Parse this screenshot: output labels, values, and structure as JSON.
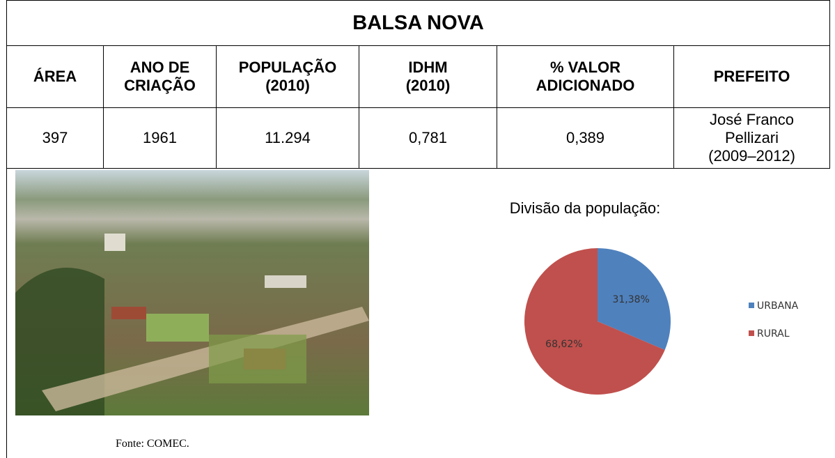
{
  "table": {
    "title": "BALSA NOVA",
    "headers": [
      [
        "ÁREA"
      ],
      [
        "ANO DE",
        "CRIAÇÃO"
      ],
      [
        "POPULAÇÃO",
        "(2010)"
      ],
      [
        "IDHM",
        "(2010)"
      ],
      [
        "% VALOR",
        "ADICIONADO"
      ],
      [
        "PREFEITO"
      ]
    ],
    "row": [
      [
        "397"
      ],
      [
        "1961"
      ],
      [
        "11.294"
      ],
      [
        "0,781"
      ],
      [
        "0,389"
      ],
      [
        "José Franco",
        "Pellizari",
        "(2009–2012)"
      ]
    ]
  },
  "caption": "Fonte: COMEC.",
  "chart_data": {
    "type": "pie",
    "title": "Divisão da população:",
    "categories": [
      "URBANA",
      "RURAL"
    ],
    "values": [
      31.38,
      68.62
    ],
    "value_labels": [
      "31,38%",
      "68,62%"
    ],
    "colors": [
      "#4f81bd",
      "#c0504d"
    ]
  }
}
